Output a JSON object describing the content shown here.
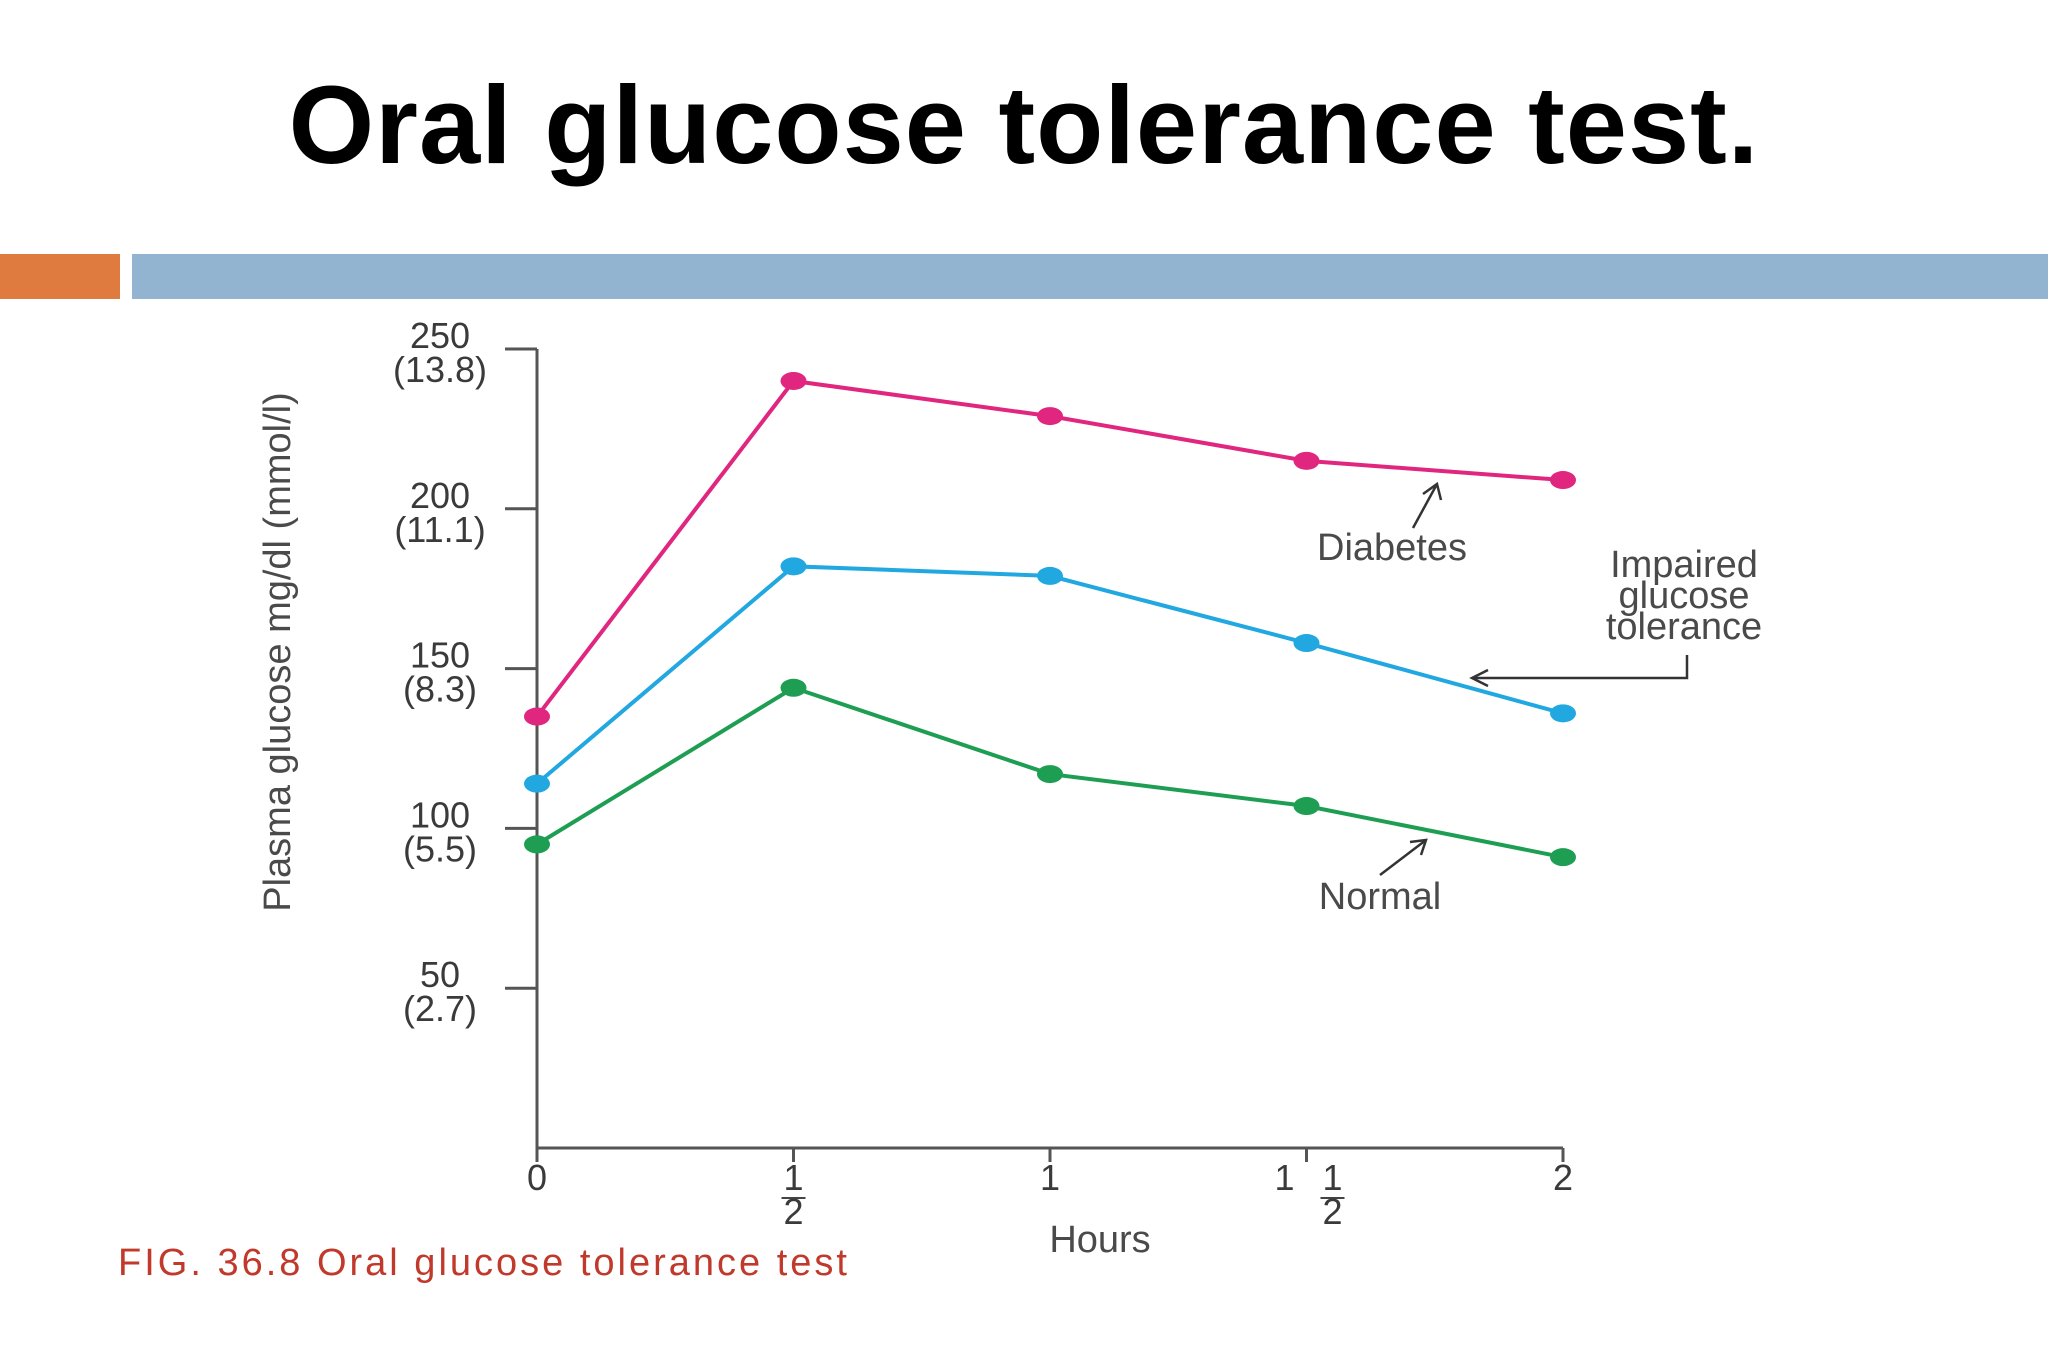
{
  "slide": {
    "title": "Oral glucose tolerance test.",
    "caption": "FIG. 36.8   Oral glucose tolerance test"
  },
  "colors": {
    "orange_bar": "#E07B3F",
    "blue_bar": "#93B4D1",
    "diabetes": "#E0267E",
    "impaired": "#22A8E0",
    "normal": "#1E9E52"
  },
  "chart_data": {
    "type": "line",
    "x": [
      0,
      0.5,
      1,
      1.5,
      2
    ],
    "x_tick_labels": [
      "0",
      "1/2",
      "1",
      "1 1/2",
      "2"
    ],
    "xlabel": "Hours",
    "ylabel": "Plasma glucose mg/dl (mmol/l)",
    "ylim": [
      0,
      250
    ],
    "y_ticks": [
      {
        "value": 250,
        "label": "250",
        "sub": "(13.8)"
      },
      {
        "value": 200,
        "label": "200",
        "sub": "(11.1)"
      },
      {
        "value": 150,
        "label": "150",
        "sub": "(8.3)"
      },
      {
        "value": 100,
        "label": "100",
        "sub": "(5.5)"
      },
      {
        "value": 50,
        "label": "50",
        "sub": "(2.7)"
      }
    ],
    "series": [
      {
        "name": "Diabetes",
        "values": [
          135,
          240,
          229,
          215,
          209
        ],
        "color": "#E0267E"
      },
      {
        "name": "Impaired glucose tolerance",
        "values": [
          114,
          182,
          179,
          158,
          136
        ],
        "color": "#22A8E0"
      },
      {
        "name": "Normal",
        "values": [
          95,
          144,
          117,
          107,
          91
        ],
        "color": "#1E9E52"
      }
    ],
    "annotations": [
      {
        "text": "Diabetes",
        "series": "Diabetes"
      },
      {
        "text_lines": [
          "Impaired",
          "glucose",
          "tolerance"
        ],
        "series": "Impaired glucose tolerance"
      },
      {
        "text": "Normal",
        "series": "Normal"
      }
    ]
  }
}
